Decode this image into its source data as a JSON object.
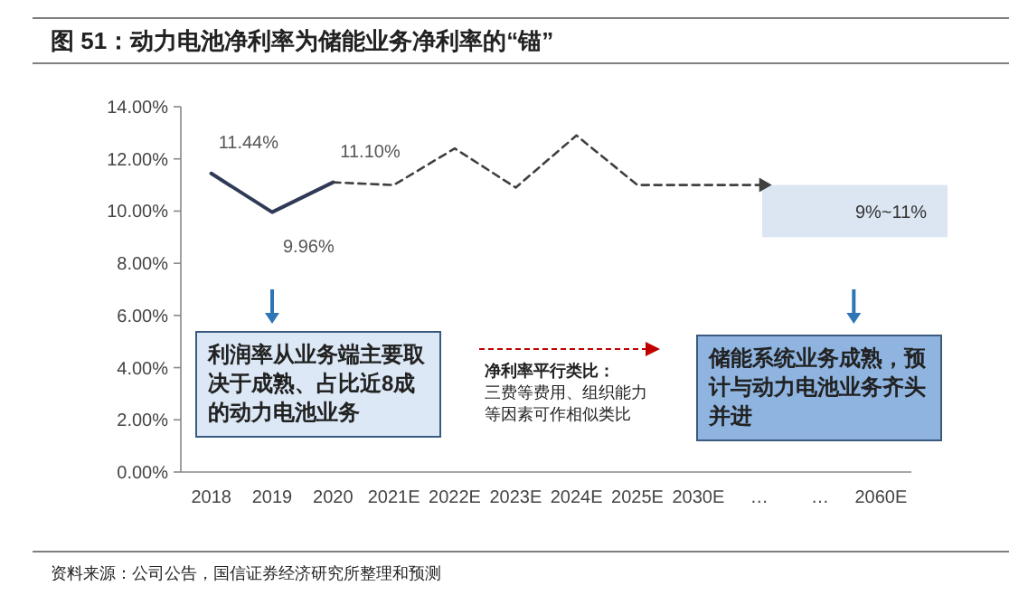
{
  "chart_data": {
    "type": "line",
    "title": "图 51：动力电池净利率为储能业务净利率的“锚”",
    "categories": [
      "2018",
      "2019",
      "2020",
      "2021E",
      "2022E",
      "2023E",
      "2024E",
      "2025E",
      "2030E",
      "…",
      "…",
      "2060E"
    ],
    "series": [
      {
        "color": "#2f3a56",
        "line_style": "solid",
        "values": [
          11.44,
          9.96,
          11.1,
          null,
          null,
          null,
          null,
          null,
          null,
          null,
          null,
          null
        ],
        "value_labels": [
          "11.44%",
          "9.96%",
          "11.10%",
          null,
          null,
          null,
          null,
          null,
          null,
          null,
          null,
          null
        ]
      },
      {
        "color": "#404040",
        "line_style": "dashed",
        "values": [
          null,
          null,
          11.1,
          11.0,
          12.4,
          10.9,
          12.9,
          11.0,
          11.0,
          11.0,
          null,
          null
        ]
      }
    ],
    "ylim": [
      0,
      14
    ],
    "yticks": [
      {
        "value": 0,
        "label": "0.00%"
      },
      {
        "value": 2,
        "label": "2.00%"
      },
      {
        "value": 4,
        "label": "4.00%"
      },
      {
        "value": 6,
        "label": "6.00%"
      },
      {
        "value": 8,
        "label": "8.00%"
      },
      {
        "value": 10,
        "label": "10.00%"
      },
      {
        "value": 12,
        "label": "12.00%"
      },
      {
        "value": 14,
        "label": "14.00%"
      }
    ],
    "bands": [
      {
        "axis": "y",
        "from": 9,
        "to": 11,
        "label": "9%~11%",
        "color": "#dce6f2"
      }
    ],
    "annotations": [
      "利润率从业务端主要取决于成熟、占比近8成的动力电池业务",
      "**净利率平行类比：**三费等费用、组织能力等因素可作相似类比",
      "储能系统业务成熟，预计与动力电池业务齐头并进",
      "资料来源：公司公告，国信证券经济研究所整理和预测"
    ],
    "grid": false,
    "marker": "none"
  }
}
